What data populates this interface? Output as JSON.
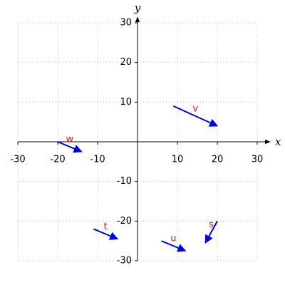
{
  "chart_data": {
    "type": "vector",
    "x_label": "x",
    "y_label": "y",
    "xlim": [
      -30,
      30
    ],
    "ylim": [
      -30,
      30
    ],
    "xticks": [
      -30,
      -20,
      -10,
      10,
      20,
      30
    ],
    "yticks": [
      -30,
      -20,
      -10,
      10,
      20,
      30
    ],
    "grid": true,
    "color": "#0000ee",
    "label_color": "#dd1111",
    "vectors": [
      {
        "name": "v",
        "x0": 9,
        "y0": 9,
        "x1": 20,
        "y1": 4
      },
      {
        "name": "w",
        "x0": -20,
        "y0": 0,
        "x1": -14,
        "y1": -2.5
      },
      {
        "name": "t",
        "x0": -11,
        "y0": -22,
        "x1": -5,
        "y1": -24.5
      },
      {
        "name": "u",
        "x0": 6,
        "y0": -25,
        "x1": 12,
        "y1": -27.5
      },
      {
        "name": "s",
        "x0": 20,
        "y0": -20,
        "x1": 17,
        "y1": -25.5
      }
    ]
  }
}
